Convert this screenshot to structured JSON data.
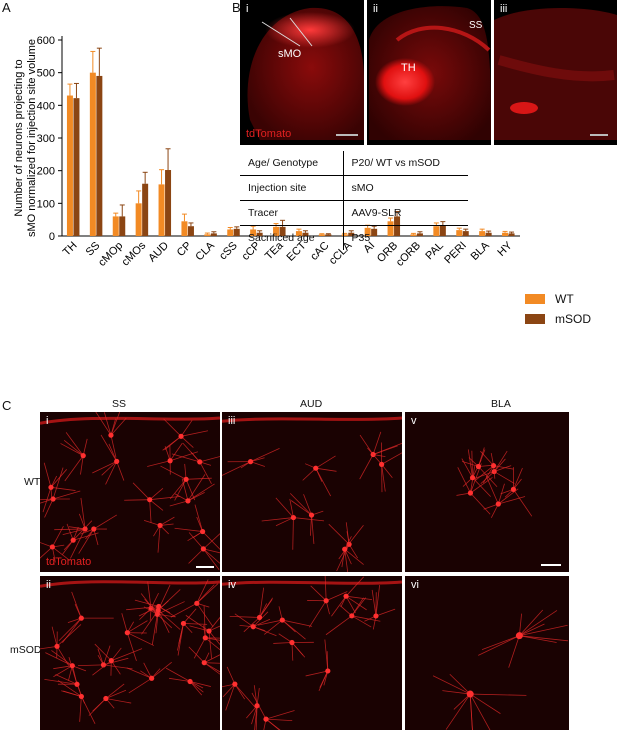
{
  "panel_a": {
    "letter": "A"
  },
  "panel_b": {
    "letter": "B",
    "sub_i": "i",
    "sub_ii": "ii",
    "sub_iii": "iii",
    "label_smo": "sMO",
    "label_th": "TH",
    "label_ss": "SS",
    "tdtomato": "tdTomato",
    "table": [
      {
        "k": "Age/ Genotype",
        "v": "P20/ WT  vs mSOD"
      },
      {
        "k": "Injection site",
        "v": "sMO"
      },
      {
        "k": "Tracer",
        "v": "AAV9-SLR"
      },
      {
        "k": "Sacrificed age",
        "v": "P35"
      }
    ]
  },
  "panel_c": {
    "letter": "C",
    "col_ss": "SS",
    "col_aud": "AUD",
    "col_bla": "BLA",
    "row_wt": "WT",
    "row_msod": "mSOD",
    "tdtomato": "tdTomato",
    "subs": [
      "i",
      "ii",
      "iii",
      "iv",
      "v",
      "vi"
    ]
  },
  "colors": {
    "wt": "#f28a24",
    "msod": "#8b4513",
    "fluor": "#e02020"
  },
  "chart_data": {
    "type": "bar",
    "ylabel": "Number of neurons projecting to sMO normalized for injection site volume",
    "ylim": [
      0,
      600
    ],
    "yticks": [
      0,
      100,
      200,
      300,
      400,
      500,
      600
    ],
    "categories": [
      "TH",
      "SS",
      "cMOp",
      "cMOs",
      "AUD",
      "CP",
      "CLA",
      "cSS",
      "cCP",
      "TEa",
      "ECT",
      "cAC",
      "cCLA",
      "AI",
      "ORB",
      "cORB",
      "PAL",
      "PERI",
      "BLA",
      "HY"
    ],
    "series": [
      {
        "name": "WT",
        "values": [
          430,
          500,
          60,
          100,
          158,
          45,
          5,
          20,
          20,
          28,
          15,
          5,
          5,
          25,
          45,
          5,
          30,
          18,
          15,
          10
        ],
        "errors": [
          35,
          65,
          10,
          38,
          45,
          22,
          4,
          6,
          10,
          10,
          6,
          2,
          3,
          8,
          10,
          3,
          10,
          6,
          6,
          4
        ]
      },
      {
        "name": "mSOD",
        "values": [
          422,
          490,
          60,
          160,
          202,
          30,
          8,
          22,
          10,
          28,
          10,
          5,
          10,
          22,
          60,
          8,
          32,
          15,
          10,
          8
        ],
        "errors": [
          45,
          85,
          35,
          35,
          65,
          10,
          5,
          6,
          6,
          20,
          6,
          2,
          6,
          8,
          15,
          5,
          12,
          6,
          5,
          4
        ]
      }
    ],
    "legend": "right",
    "grid": false
  }
}
